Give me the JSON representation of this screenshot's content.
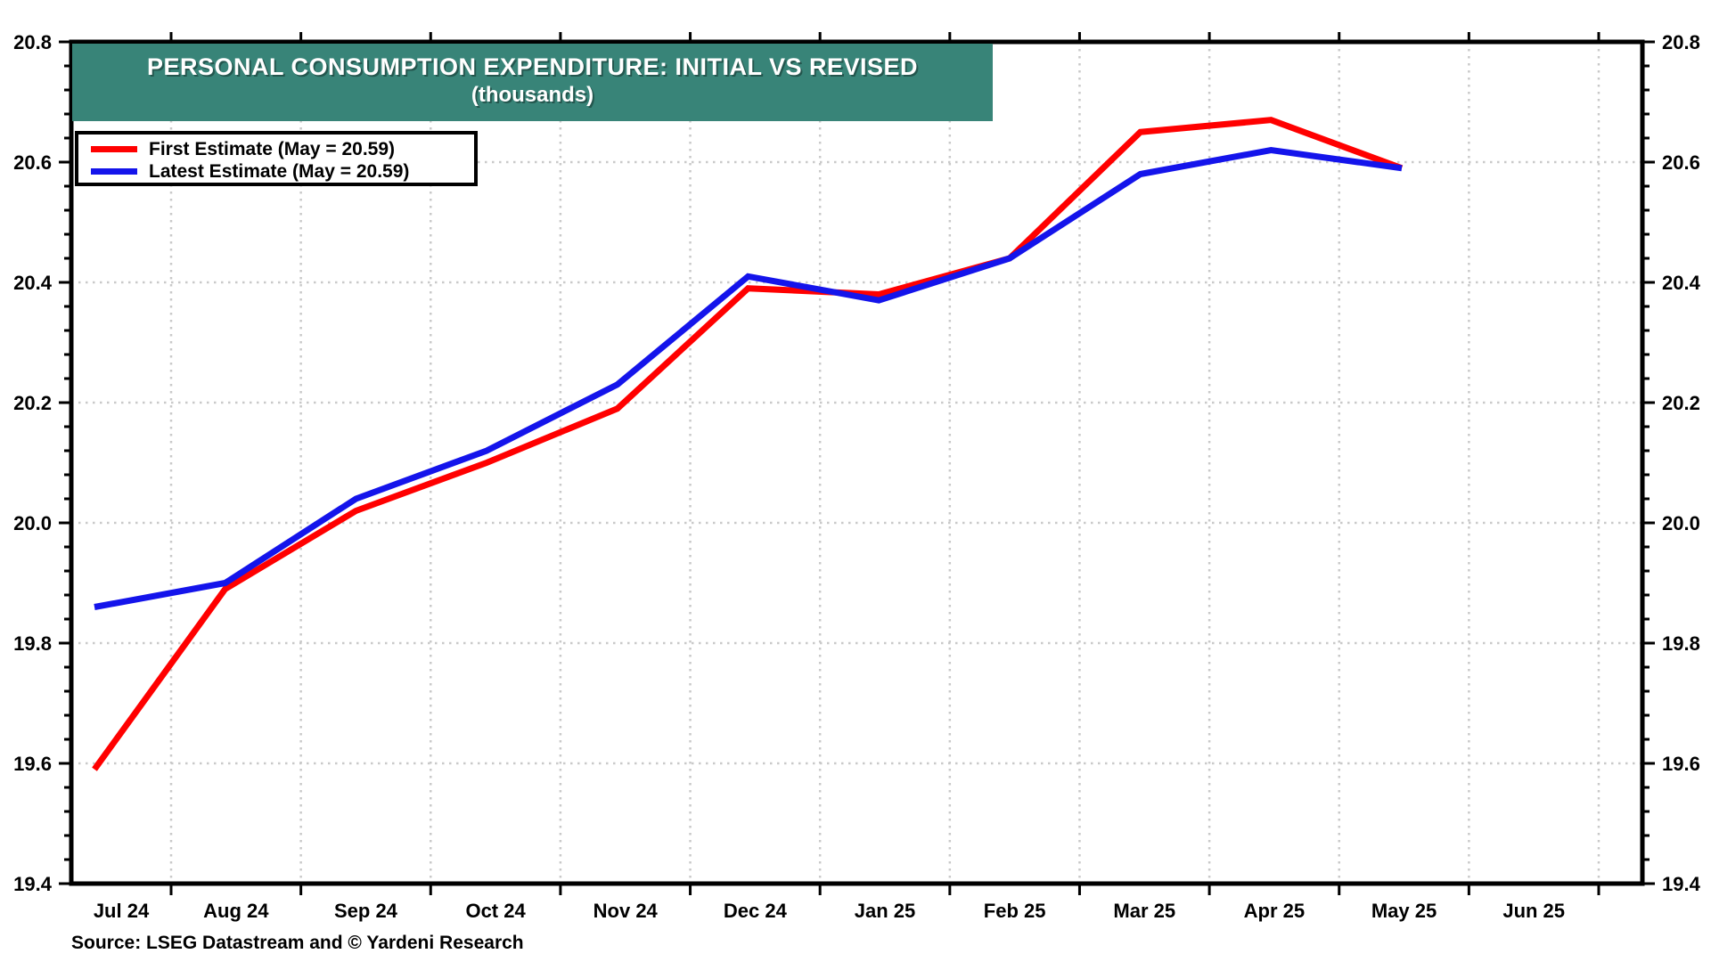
{
  "chart_data": {
    "type": "line",
    "title": "PERSONAL CONSUMPTION EXPENDITURE: INITIAL VS REVISED",
    "subtitle": "(thousands)",
    "source": "Source: LSEG Datastream and © Yardeni Research",
    "categories": [
      "Jul 24",
      "Aug 24",
      "Sep 24",
      "Oct 24",
      "Nov 24",
      "Dec 24",
      "Jan 25",
      "Feb 25",
      "Mar 25",
      "Apr 25",
      "May 25",
      "Jun 25"
    ],
    "series": [
      {
        "name": "First Estimate (May = 20.59)",
        "color": "#FF0000",
        "values": [
          19.59,
          19.89,
          20.02,
          20.1,
          20.19,
          20.39,
          20.38,
          20.44,
          20.65,
          20.67,
          20.59
        ]
      },
      {
        "name": "Latest Estimate (May = 20.59)",
        "color": "#1414EB",
        "values": [
          19.86,
          19.9,
          20.04,
          20.12,
          20.23,
          20.41,
          20.37,
          20.44,
          20.58,
          20.62,
          20.59
        ]
      }
    ],
    "ylim": [
      19.4,
      20.8
    ],
    "y_major_step": 0.2,
    "y_minor_step": 0.04,
    "y_tick_labels": [
      "19.4",
      "19.6",
      "19.8",
      "20.0",
      "20.2",
      "20.4",
      "20.6",
      "20.8"
    ],
    "y_axis_sides": "left and right (mirrored)",
    "grid": "dotted gray, horizontal at majors, vertical at month boundaries",
    "legend_position": "top-left",
    "colors": {
      "title_bar": "#388478",
      "grid": "#C9C9C9",
      "axis": "#000000",
      "background": "#FFFFFF"
    }
  }
}
